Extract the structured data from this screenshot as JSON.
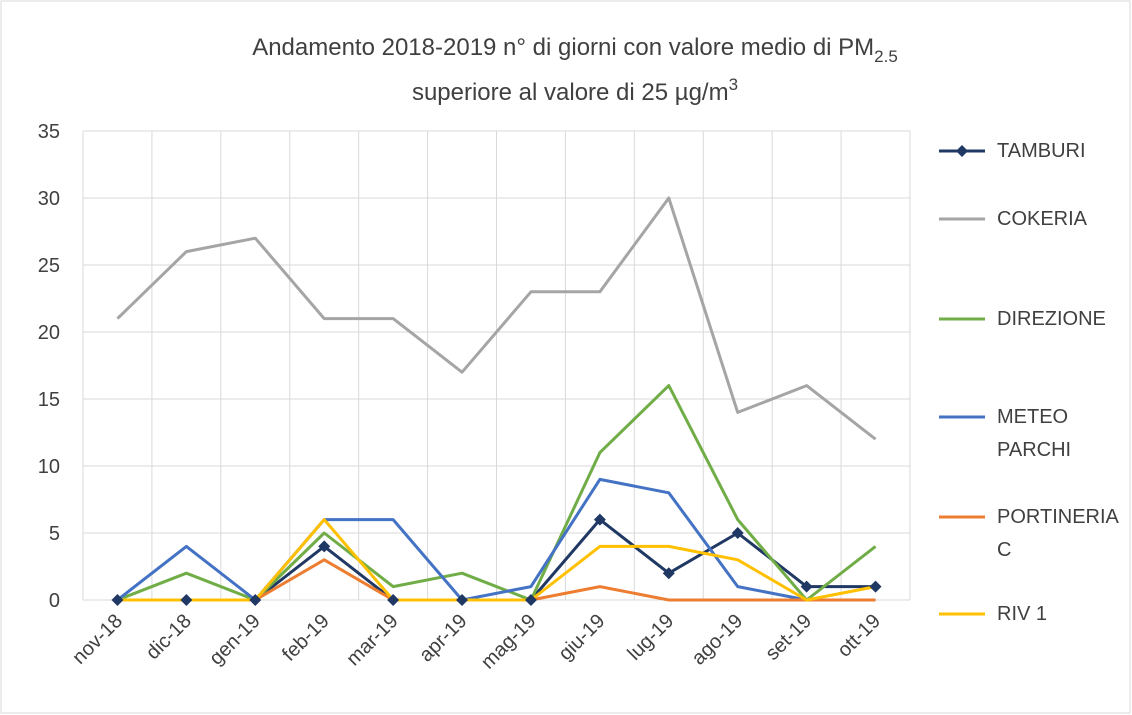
{
  "chart_data": {
    "type": "line",
    "title": {
      "line1": "Andamento 2018-2019 n° di giorni con valore medio di PM",
      "line1_sub": "2.5",
      "line2": "superiore al valore di 25 µg/m",
      "line2_sup": "3"
    },
    "categories": [
      "nov-18",
      "dic-18",
      "gen-19",
      "feb-19",
      "mar-19",
      "apr-19",
      "mag-19",
      "giu-19",
      "lug-19",
      "ago-19",
      "set-19",
      "ott-19"
    ],
    "series": [
      {
        "name": "TAMBURI",
        "color": "#203864",
        "marker": "diamond",
        "values": [
          0,
          0,
          0,
          4,
          0,
          0,
          0,
          6,
          2,
          5,
          1,
          1
        ]
      },
      {
        "name": "COKERIA",
        "color": "#a5a5a5",
        "values": [
          21,
          26,
          27,
          21,
          21,
          17,
          23,
          23,
          30,
          14,
          16,
          12
        ]
      },
      {
        "name": "DIREZIONE",
        "color": "#70ad47",
        "values": [
          0,
          2,
          0,
          5,
          1,
          2,
          0,
          11,
          16,
          6,
          0,
          4
        ]
      },
      {
        "name": "METEO PARCHI",
        "color": "#4472c4",
        "values": [
          0,
          4,
          0,
          6,
          6,
          0,
          1,
          9,
          8,
          1,
          0,
          0
        ]
      },
      {
        "name": "PORTINERIA C",
        "color": "#ed7d31",
        "values": [
          0,
          0,
          0,
          3,
          0,
          0,
          0,
          1,
          0,
          0,
          0,
          0
        ]
      },
      {
        "name": "RIV 1",
        "color": "#ffc000",
        "values": [
          0,
          0,
          0,
          6,
          0,
          0,
          0,
          4,
          4,
          3,
          0,
          1
        ]
      }
    ],
    "ylim": [
      0,
      35
    ],
    "yticks": [
      0,
      5,
      10,
      15,
      20,
      25,
      30,
      35
    ],
    "grid": true,
    "legend": "right"
  }
}
